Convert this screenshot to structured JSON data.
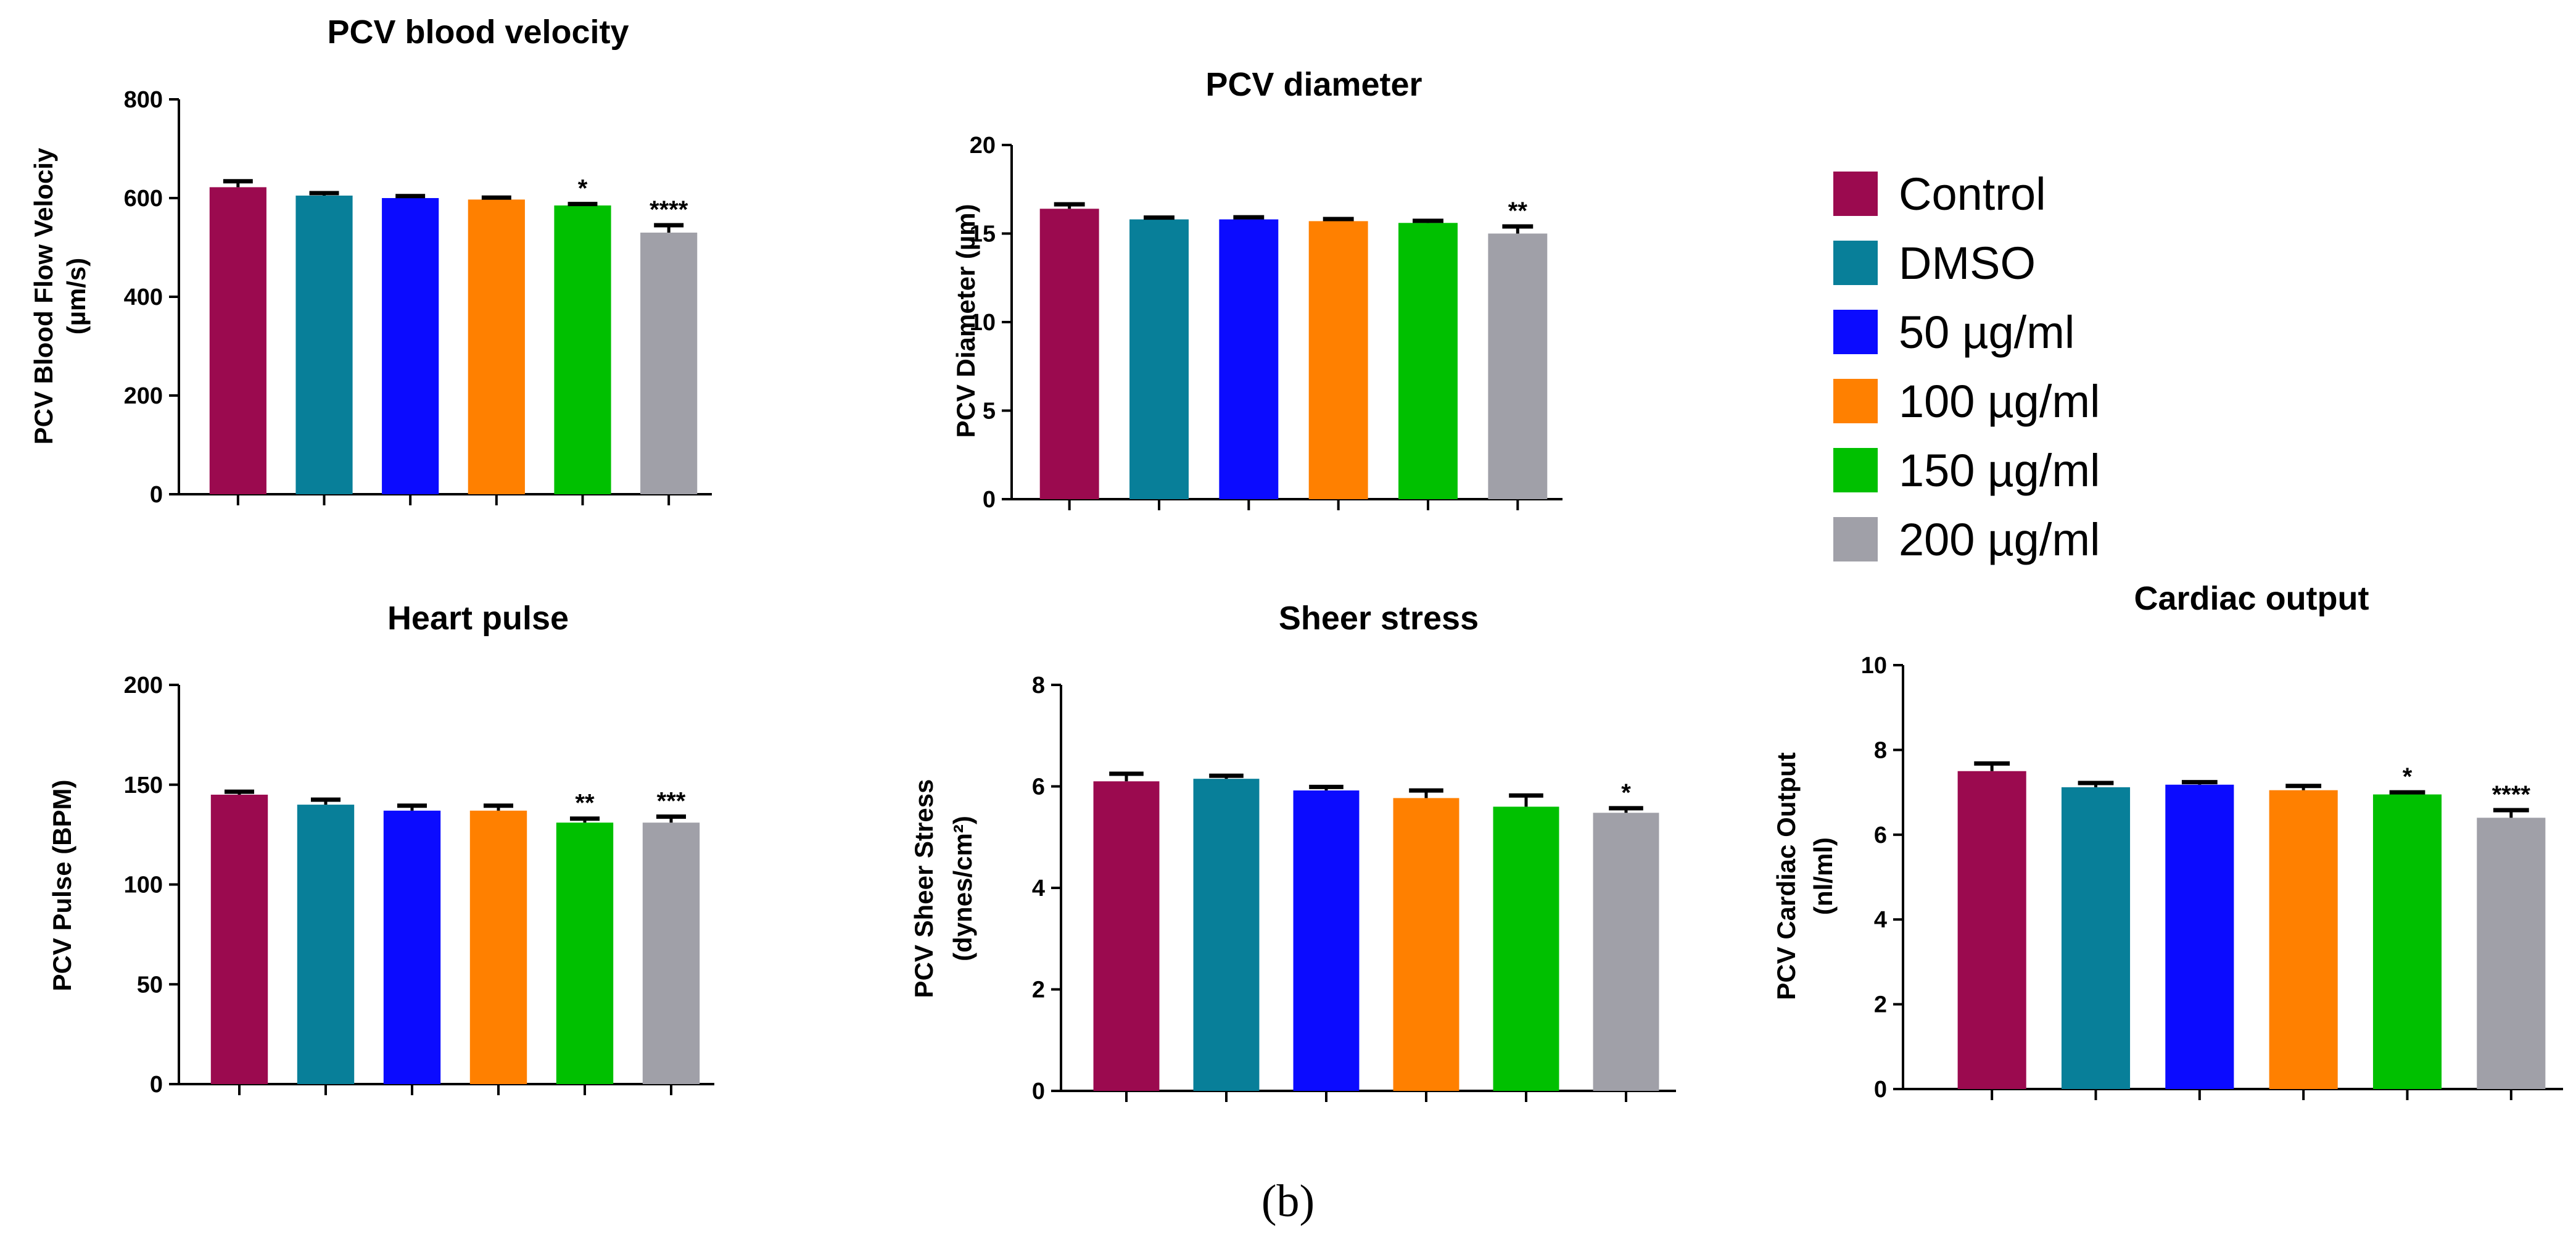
{
  "figure_label": "(b)",
  "groups": [
    "Control",
    "DMSO",
    "50 µg/ml",
    "100 µg/ml",
    "150 µg/ml",
    "200 µg/ml"
  ],
  "colors": [
    "#9b0a4f",
    "#087f99",
    "#0b0bff",
    "#ff8000",
    "#00c000",
    "#a0a0a8"
  ],
  "chart_data": [
    {
      "id": "velocity",
      "type": "bar",
      "title": "PCV blood velocity",
      "ylabel_lines": [
        "PCV Blood Flow Velociy",
        "(µm/s)"
      ],
      "categories": [
        "Control",
        "DMSO",
        "50 µg/ml",
        "100 µg/ml",
        "150 µg/ml",
        "200 µg/ml"
      ],
      "values": [
        622,
        605,
        600,
        597,
        585,
        530
      ],
      "errors": [
        12,
        5,
        4,
        4,
        3,
        15
      ],
      "significance": [
        "",
        "",
        "",
        "",
        "*",
        "****"
      ],
      "ylim": [
        0,
        800
      ],
      "ticks": [
        0,
        200,
        400,
        600,
        800
      ]
    },
    {
      "id": "diameter",
      "type": "bar",
      "title": "PCV diameter",
      "ylabel_lines": [
        "PCV Diameter (µm)"
      ],
      "categories": [
        "Control",
        "DMSO",
        "50 µg/ml",
        "100 µg/ml",
        "150 µg/ml",
        "200 µg/ml"
      ],
      "values": [
        16.4,
        15.8,
        15.8,
        15.7,
        15.6,
        15.0
      ],
      "errors": [
        0.25,
        0.1,
        0.12,
        0.12,
        0.12,
        0.4
      ],
      "significance": [
        "",
        "",
        "",
        "",
        "",
        "**"
      ],
      "ylim": [
        0,
        20
      ],
      "ticks": [
        0,
        5,
        10,
        15,
        20
      ]
    },
    {
      "id": "pulse",
      "type": "bar",
      "title": "Heart pulse",
      "ylabel_lines": [
        "PCV Pulse (BPM)"
      ],
      "categories": [
        "Control",
        "DMSO",
        "50 µg/ml",
        "100 µg/ml",
        "150 µg/ml",
        "200 µg/ml"
      ],
      "values": [
        145,
        140,
        137,
        137,
        131,
        131
      ],
      "errors": [
        1.5,
        2.5,
        2.5,
        2.5,
        2,
        3
      ],
      "significance": [
        "",
        "",
        "",
        "",
        "**",
        "***"
      ],
      "ylim": [
        0,
        200
      ],
      "ticks": [
        0,
        50,
        100,
        150,
        200
      ]
    },
    {
      "id": "sheer",
      "type": "bar",
      "title": "Sheer stress",
      "ylabel_lines": [
        "PCV Sheer Stress",
        "(dynes/cm²)"
      ],
      "categories": [
        "Control",
        "DMSO",
        "50 µg/ml",
        "100 µg/ml",
        "150 µg/ml",
        "200 µg/ml"
      ],
      "values": [
        6.1,
        6.15,
        5.92,
        5.77,
        5.6,
        5.48
      ],
      "errors": [
        0.15,
        0.06,
        0.07,
        0.15,
        0.22,
        0.09
      ],
      "significance": [
        "",
        "",
        "",
        "",
        "",
        "*"
      ],
      "ylim": [
        0,
        8
      ],
      "ticks": [
        0,
        2,
        4,
        6,
        8
      ]
    },
    {
      "id": "cardiac",
      "type": "bar",
      "title": "Cardiac output",
      "ylabel_lines": [
        "PCV Cardiac Output",
        "(nl/ml)"
      ],
      "categories": [
        "Control",
        "DMSO",
        "50 µg/ml",
        "100 µg/ml",
        "150 µg/ml",
        "200 µg/ml"
      ],
      "values": [
        7.5,
        7.12,
        7.18,
        7.05,
        6.95,
        6.4
      ],
      "errors": [
        0.18,
        0.1,
        0.06,
        0.1,
        0.05,
        0.18
      ],
      "significance": [
        "",
        "",
        "",
        "",
        "*",
        "****"
      ],
      "ylim": [
        0,
        10
      ],
      "ticks": [
        0,
        2,
        4,
        6,
        8,
        10
      ]
    }
  ]
}
